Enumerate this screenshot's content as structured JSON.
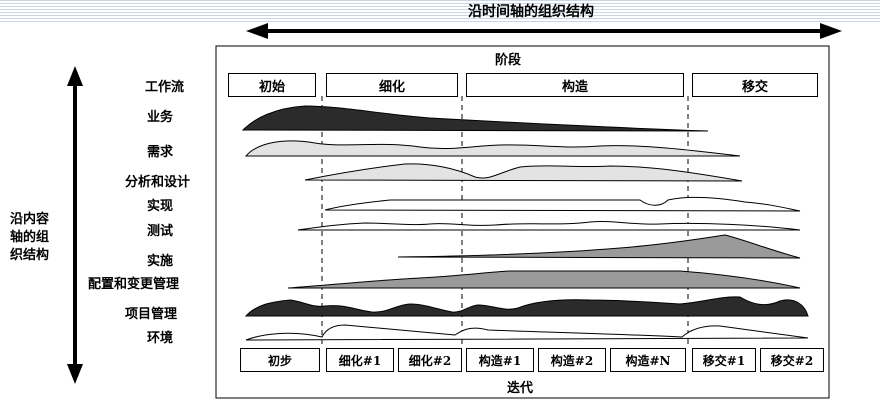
{
  "diagram": {
    "top_axis_label": "沿时间轴的组织结构",
    "left_axis_label": [
      "沿内容",
      "轴的组",
      "织结构"
    ],
    "phases_title": "阶段",
    "iterations_title": "迭代",
    "phases": [
      "初始",
      "细化",
      "构造",
      "移交"
    ],
    "workflow_header": "工作流",
    "workflows": [
      "业务",
      "需求",
      "分析和设计",
      "实现",
      "测试",
      "实施",
      "配置和变更管理",
      "项目管理",
      "环境"
    ],
    "iterations": [
      "初步",
      "细化#1",
      "细化#2",
      "构造#1",
      "构造#2",
      "构造#N",
      "移交#1",
      "移交#2"
    ]
  },
  "colors": {
    "dark": "#2b2b2b",
    "light": "#e3e3e3",
    "mid": "#9a9a9a",
    "stripe": "#c9d6e6"
  }
}
